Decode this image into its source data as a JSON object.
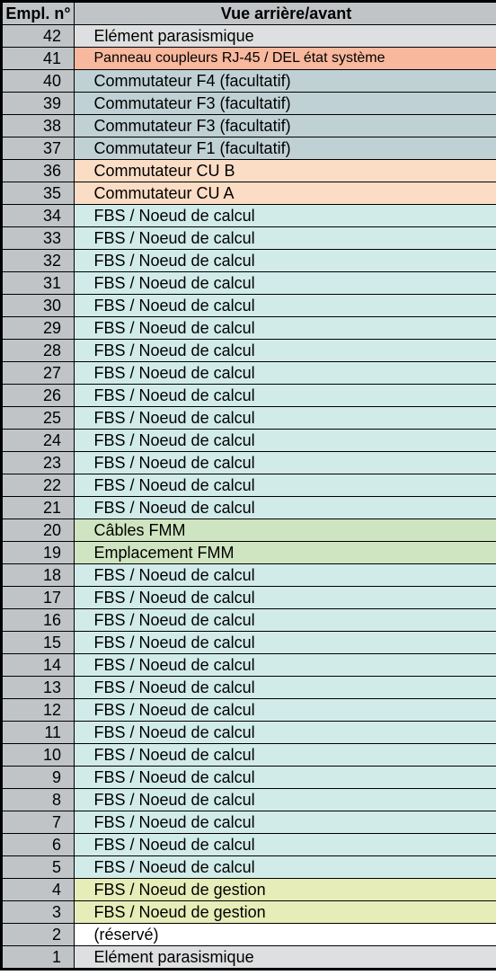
{
  "header": {
    "col1": "Empl. n°",
    "col2": "Vue arrière/avant"
  },
  "colors": {
    "header": "#c1c4c7",
    "numcol": "#c1c4c7",
    "gray": "#dedfe0",
    "salmon": "#f8b89d",
    "bluegray": "#c0d1d5",
    "peach": "#fbddc6",
    "cyan": "#d1ebe9",
    "green": "#cfe5c1",
    "yellowgreen": "#e7edb8",
    "white": "#ffffff"
  },
  "rows": [
    {
      "num": "42",
      "label": "Elément parasismique",
      "bg": "#dedfe0",
      "fontsize": 18
    },
    {
      "num": "41",
      "label": "Panneau coupleurs RJ-45 / DEL état système",
      "bg": "#f8b89d",
      "fontsize": 16
    },
    {
      "num": "40",
      "label": "Commutateur F4 (facultatif)",
      "bg": "#c0d1d5",
      "fontsize": 18
    },
    {
      "num": "39",
      "label": "Commutateur F3 (facultatif)",
      "bg": "#c0d1d5",
      "fontsize": 18
    },
    {
      "num": "38",
      "label": "Commutateur F3 (facultatif)",
      "bg": "#c0d1d5",
      "fontsize": 18
    },
    {
      "num": "37",
      "label": "Commutateur F1 (facultatif)",
      "bg": "#c0d1d5",
      "fontsize": 18
    },
    {
      "num": "36",
      "label": "Commutateur CU B",
      "bg": "#fbddc6",
      "fontsize": 18
    },
    {
      "num": "35",
      "label": "Commutateur CU A",
      "bg": "#fbddc6",
      "fontsize": 18
    },
    {
      "num": "34",
      "label": "FBS / Noeud de calcul",
      "bg": "#d1ebe9",
      "fontsize": 18
    },
    {
      "num": "33",
      "label": "FBS / Noeud de calcul",
      "bg": "#d1ebe9",
      "fontsize": 18
    },
    {
      "num": "32",
      "label": "FBS / Noeud de calcul",
      "bg": "#d1ebe9",
      "fontsize": 18
    },
    {
      "num": "31",
      "label": "FBS / Noeud de calcul",
      "bg": "#d1ebe9",
      "fontsize": 18
    },
    {
      "num": "30",
      "label": "FBS / Noeud de calcul",
      "bg": "#d1ebe9",
      "fontsize": 18
    },
    {
      "num": "29",
      "label": "FBS / Noeud de calcul",
      "bg": "#d1ebe9",
      "fontsize": 18
    },
    {
      "num": "28",
      "label": "FBS / Noeud de calcul",
      "bg": "#d1ebe9",
      "fontsize": 18
    },
    {
      "num": "27",
      "label": "FBS / Noeud de calcul",
      "bg": "#d1ebe9",
      "fontsize": 18
    },
    {
      "num": "26",
      "label": "FBS / Noeud de calcul",
      "bg": "#d1ebe9",
      "fontsize": 18
    },
    {
      "num": "25",
      "label": "FBS / Noeud de calcul",
      "bg": "#d1ebe9",
      "fontsize": 18
    },
    {
      "num": "24",
      "label": "FBS / Noeud de calcul",
      "bg": "#d1ebe9",
      "fontsize": 18
    },
    {
      "num": "23",
      "label": "FBS / Noeud de calcul",
      "bg": "#d1ebe9",
      "fontsize": 18
    },
    {
      "num": "22",
      "label": "FBS / Noeud de calcul",
      "bg": "#d1ebe9",
      "fontsize": 18
    },
    {
      "num": "21",
      "label": "FBS / Noeud de calcul",
      "bg": "#d1ebe9",
      "fontsize": 18
    },
    {
      "num": "20",
      "label": "Câbles FMM",
      "bg": "#cfe5c1",
      "fontsize": 18
    },
    {
      "num": "19",
      "label": "Emplacement FMM",
      "bg": "#cfe5c1",
      "fontsize": 18
    },
    {
      "num": "18",
      "label": "FBS / Noeud de calcul",
      "bg": "#d1ebe9",
      "fontsize": 18
    },
    {
      "num": "17",
      "label": "FBS / Noeud de calcul",
      "bg": "#d1ebe9",
      "fontsize": 18
    },
    {
      "num": "16",
      "label": "FBS / Noeud de calcul",
      "bg": "#d1ebe9",
      "fontsize": 18
    },
    {
      "num": "15",
      "label": "FBS / Noeud de calcul",
      "bg": "#d1ebe9",
      "fontsize": 18
    },
    {
      "num": "14",
      "label": "FBS / Noeud de calcul",
      "bg": "#d1ebe9",
      "fontsize": 18
    },
    {
      "num": "13",
      "label": "FBS / Noeud de calcul",
      "bg": "#d1ebe9",
      "fontsize": 18
    },
    {
      "num": "12",
      "label": "FBS / Noeud de calcul",
      "bg": "#d1ebe9",
      "fontsize": 18
    },
    {
      "num": "11",
      "label": "FBS / Noeud de calcul",
      "bg": "#d1ebe9",
      "fontsize": 18
    },
    {
      "num": "10",
      "label": "FBS / Noeud de calcul",
      "bg": "#d1ebe9",
      "fontsize": 18
    },
    {
      "num": "9",
      "label": "FBS / Noeud de calcul",
      "bg": "#d1ebe9",
      "fontsize": 18
    },
    {
      "num": "8",
      "label": "FBS / Noeud de calcul",
      "bg": "#d1ebe9",
      "fontsize": 18
    },
    {
      "num": "7",
      "label": "FBS / Noeud de calcul",
      "bg": "#d1ebe9",
      "fontsize": 18
    },
    {
      "num": "6",
      "label": "FBS / Noeud de calcul",
      "bg": "#d1ebe9",
      "fontsize": 18
    },
    {
      "num": "5",
      "label": "FBS / Noeud de calcul",
      "bg": "#d1ebe9",
      "fontsize": 18
    },
    {
      "num": "4",
      "label": "FBS / Noeud de gestion",
      "bg": "#e7edb8",
      "fontsize": 18
    },
    {
      "num": "3",
      "label": "FBS / Noeud de gestion",
      "bg": "#e7edb8",
      "fontsize": 18
    },
    {
      "num": "2",
      "label": "(réservé)",
      "bg": "#ffffff",
      "fontsize": 18
    },
    {
      "num": "1",
      "label": "Elément parasismique",
      "bg": "#dedfe0",
      "fontsize": 18
    }
  ]
}
